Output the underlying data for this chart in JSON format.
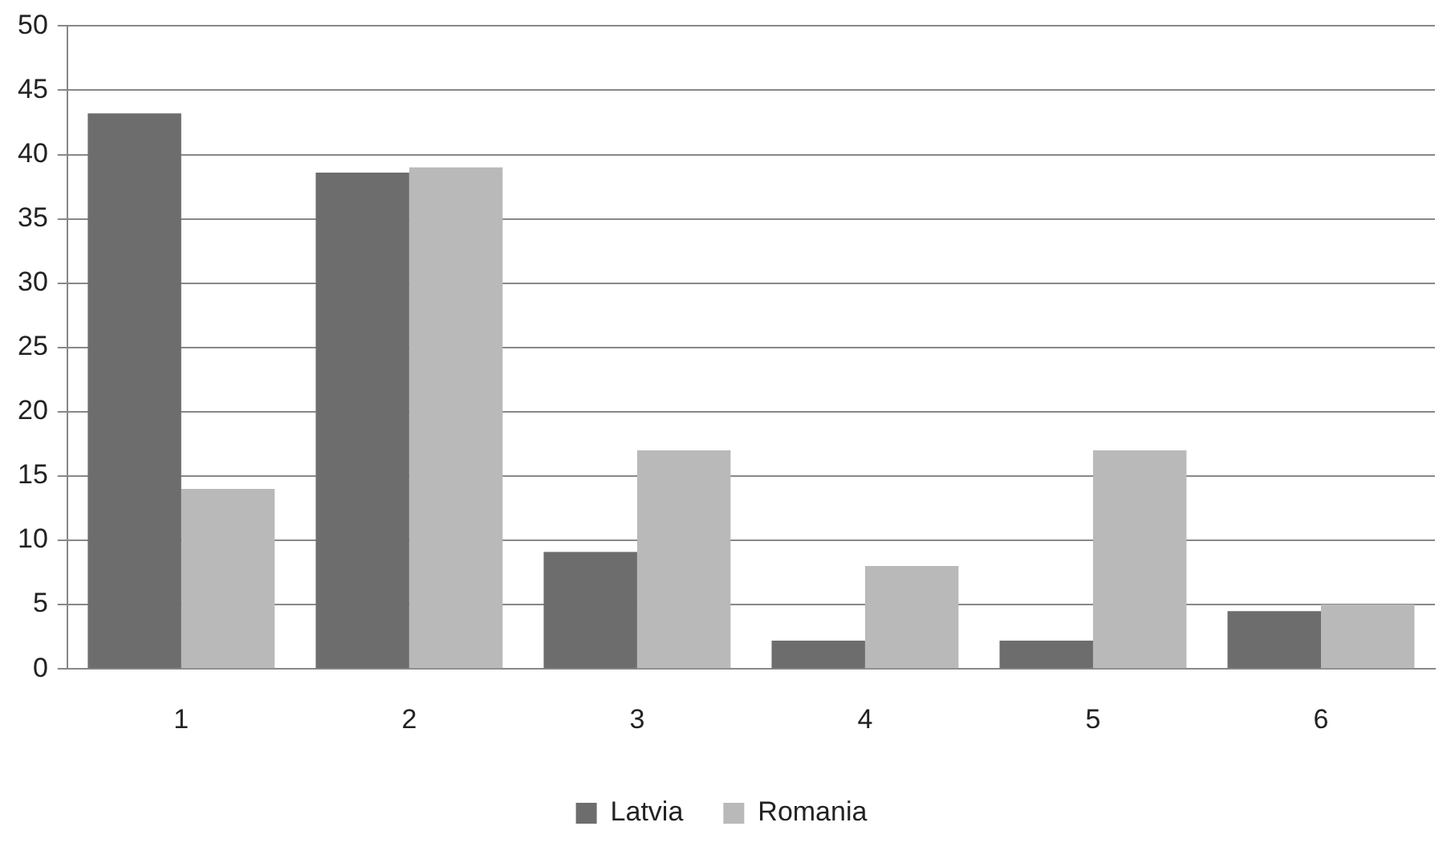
{
  "chart_data": {
    "type": "bar",
    "categories": [
      "1",
      "2",
      "3",
      "4",
      "5",
      "6"
    ],
    "series": [
      {
        "name": "Latvia",
        "color": "#6d6d6d",
        "values": [
          43.2,
          38.6,
          9.1,
          2.2,
          2.2,
          4.5
        ]
      },
      {
        "name": "Romania",
        "color": "#b9b9b9",
        "values": [
          14,
          39,
          17,
          8,
          17,
          5
        ]
      }
    ],
    "ylim": [
      0,
      50
    ],
    "yticks": [
      0,
      5,
      10,
      15,
      20,
      25,
      30,
      35,
      40,
      45,
      50
    ],
    "grid": "y",
    "legend": "bottom"
  }
}
